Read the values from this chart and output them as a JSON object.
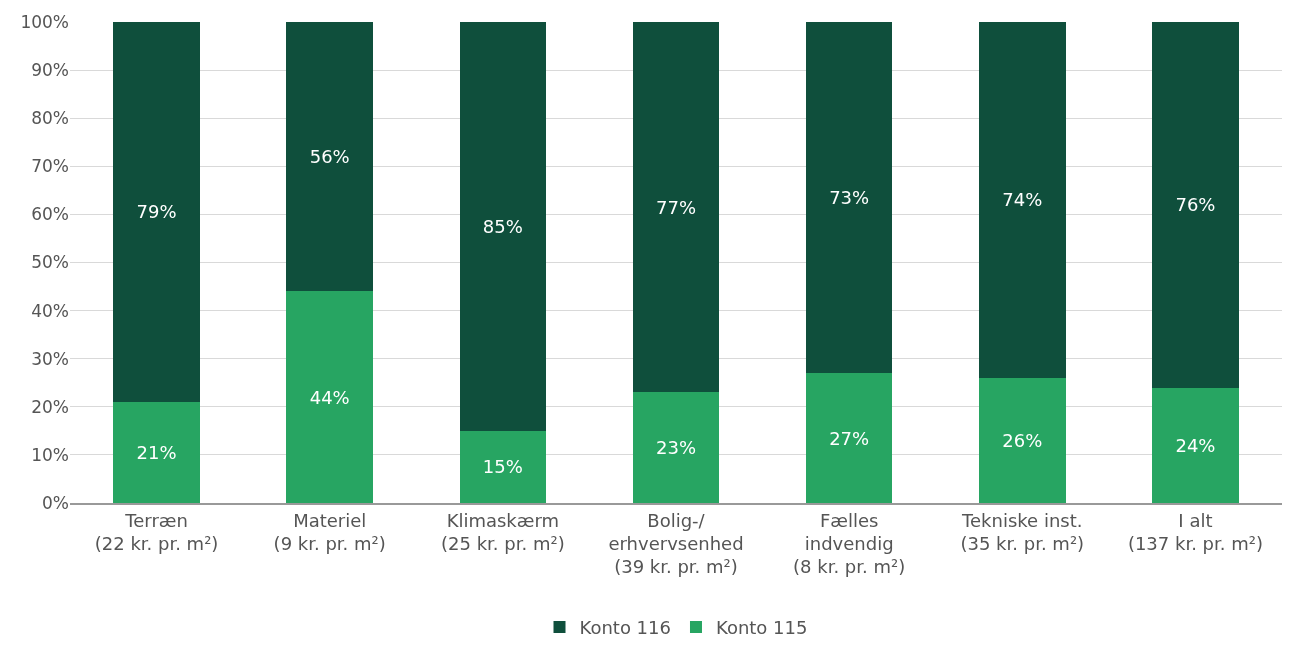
{
  "chart_data": {
    "type": "bar",
    "stacked": true,
    "categories": [
      "Terræn\n(22 kr. pr. m²)",
      "Materiel\n(9 kr. pr. m²)",
      "Klimaskærm\n(25 kr. pr. m²)",
      "Bolig-/\nerhvervsenhed\n(39 kr. pr. m²)",
      "Fælles\nindvendig\n(8 kr. pr. m²)",
      "Tekniske inst.\n(35 kr. pr. m²)",
      "I alt\n(137 kr. pr. m²)"
    ],
    "series": [
      {
        "name": "Konto 115",
        "color": "#27a562",
        "values": [
          21,
          44,
          15,
          23,
          27,
          26,
          24
        ],
        "value_labels": [
          "21%",
          "44%",
          "15%",
          "23%",
          "27%",
          "26%",
          "24%"
        ]
      },
      {
        "name": "Konto 116",
        "color": "#0f4f3c",
        "values": [
          79,
          56,
          85,
          77,
          73,
          74,
          76
        ],
        "value_labels": [
          "79%",
          "56%",
          "85%",
          "77%",
          "73%",
          "74%",
          "76%"
        ]
      }
    ],
    "ylim": [
      0,
      100
    ],
    "yticks": [
      {
        "value": 0,
        "label": "0%"
      },
      {
        "value": 10,
        "label": "10%"
      },
      {
        "value": 20,
        "label": "20%"
      },
      {
        "value": 30,
        "label": "30%"
      },
      {
        "value": 40,
        "label": "40%"
      },
      {
        "value": 50,
        "label": "50%"
      },
      {
        "value": 60,
        "label": "60%"
      },
      {
        "value": 70,
        "label": "70%"
      },
      {
        "value": 80,
        "label": "80%"
      },
      {
        "value": 90,
        "label": "90%"
      },
      {
        "value": 100,
        "label": "100%"
      }
    ],
    "grid": "y",
    "legend": "bottom"
  }
}
